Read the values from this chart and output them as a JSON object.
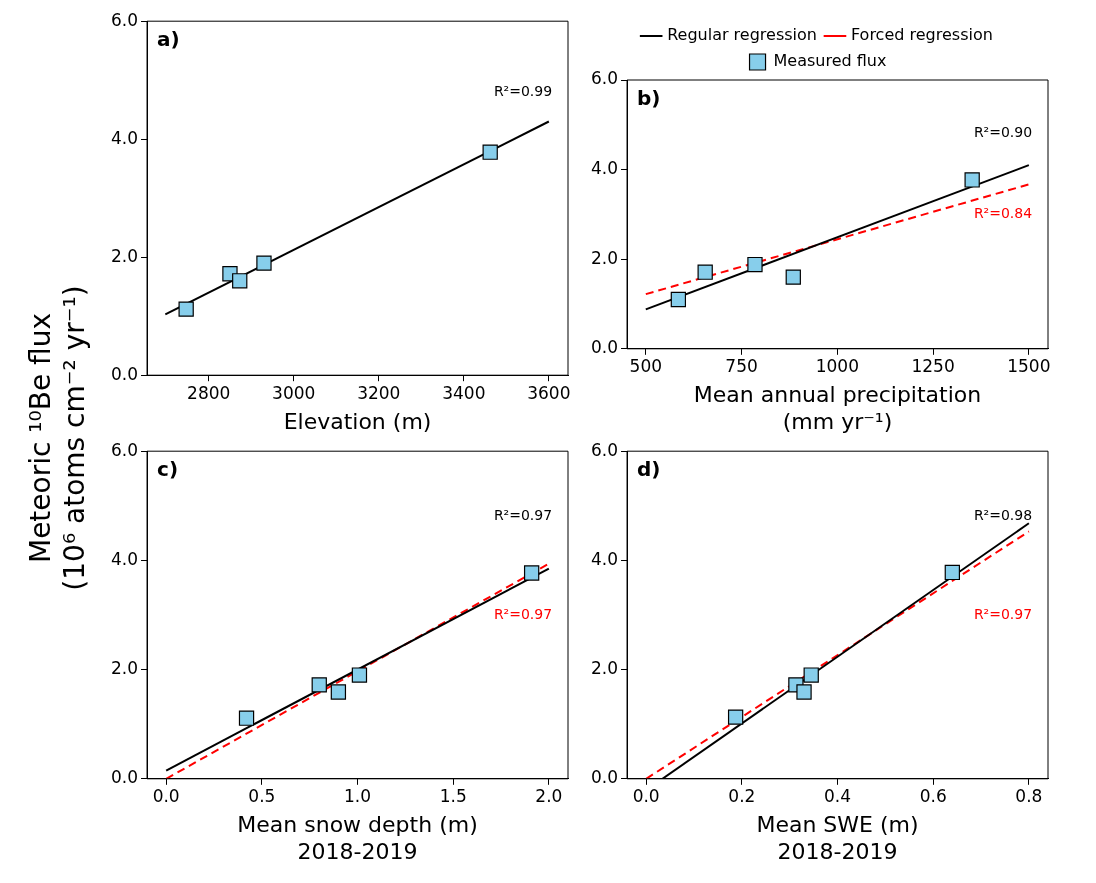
{
  "chart_data": [
    {
      "type": "scatter",
      "title": "a)",
      "xlabel": "Elevation (m)",
      "ylabel": "Meteoric ¹⁰Be flux\n(10⁶ atoms cm⁻² yr⁻¹)",
      "xlim": [
        2655,
        3645
      ],
      "xticks": [
        2800,
        3000,
        3200,
        3400,
        3600
      ],
      "ylim": [
        0,
        6
      ],
      "yticks": [
        {
          "value": 0,
          "label": "0.0"
        },
        {
          "value": 2,
          "label": "2.0"
        },
        {
          "value": 4,
          "label": "4.0"
        },
        {
          "value": 6,
          "label": "6.0"
        }
      ],
      "grid": false,
      "series": [
        {
          "type": "line",
          "color": "#000000",
          "line_style": "solid",
          "x": [
            2698,
            3600
          ],
          "values": [
            1.03,
            4.3
          ]
        },
        {
          "type": "scatter",
          "color": "#87ceeb",
          "marker": "square",
          "x": [
            2747,
            2850,
            2873,
            2930,
            3462
          ],
          "values": [
            1.12,
            1.72,
            1.6,
            1.9,
            3.78
          ]
        }
      ],
      "annotations": [
        "R²=0.99"
      ]
    },
    {
      "type": "scatter",
      "title": "b)",
      "xlabel": "Mean annual precipitation\n(mm yr⁻¹)",
      "xlim": [
        451,
        1550
      ],
      "xticks": [
        500,
        750,
        1000,
        1250,
        1500
      ],
      "ylim": [
        0,
        6
      ],
      "yticks": [
        {
          "value": 0,
          "label": "0.0"
        },
        {
          "value": 2,
          "label": "2.0"
        },
        {
          "value": 4,
          "label": "4.0"
        },
        {
          "value": 6,
          "label": "6.0"
        }
      ],
      "grid": false,
      "legend": "top",
      "series": [
        {
          "type": "line",
          "name": "Regular regression",
          "color": "#000000",
          "line_style": "solid",
          "x": [
            500,
            1500
          ],
          "values": [
            0.88,
            4.1
          ]
        },
        {
          "type": "line",
          "name": "Forced regression",
          "color": "#ff0000",
          "line_style": "dashed",
          "x": [
            500,
            1500
          ],
          "values": [
            1.22,
            3.67
          ]
        },
        {
          "type": "scatter",
          "name": "Measured flux",
          "color": "#87ceeb",
          "marker": "square",
          "x": [
            585,
            655,
            785,
            885,
            1352
          ],
          "values": [
            1.1,
            1.71,
            1.88,
            1.6,
            3.77
          ]
        }
      ],
      "annotations": [
        "R²=0.90",
        "R²=0.84"
      ]
    },
    {
      "type": "scatter",
      "title": "c)",
      "xlabel": "Mean snow depth (m)\n2018-2019",
      "xlim": [
        -0.1,
        2.1
      ],
      "xticks": [
        {
          "value": 0,
          "label": "0.0"
        },
        {
          "value": 0.5,
          "label": "0.5"
        },
        {
          "value": 1,
          "label": "1.0"
        },
        {
          "value": 1.5,
          "label": "1.5"
        },
        {
          "value": 2,
          "label": "2.0"
        }
      ],
      "ylim": [
        0,
        6
      ],
      "yticks": [
        {
          "value": 0,
          "label": "0.0"
        },
        {
          "value": 2,
          "label": "2.0"
        },
        {
          "value": 4,
          "label": "4.0"
        },
        {
          "value": 6,
          "label": "6.0"
        }
      ],
      "grid": false,
      "series": [
        {
          "type": "line",
          "color": "#000000",
          "line_style": "solid",
          "x": [
            0,
            2
          ],
          "values": [
            0.15,
            3.85
          ]
        },
        {
          "type": "line",
          "color": "#ff0000",
          "line_style": "dashed",
          "x": [
            0,
            2
          ],
          "values": [
            0,
            3.94
          ]
        },
        {
          "type": "scatter",
          "color": "#87ceeb",
          "marker": "square",
          "x": [
            0.42,
            0.8,
            0.9,
            1.01,
            1.91
          ],
          "values": [
            1.11,
            1.72,
            1.59,
            1.9,
            3.77
          ]
        }
      ],
      "annotations": [
        "R²=0.97",
        "R²=0.97"
      ]
    },
    {
      "type": "scatter",
      "title": "d)",
      "xlabel": "Mean SWE (m)\n2018-2019",
      "xlim": [
        -0.04,
        0.84
      ],
      "xticks": [
        {
          "value": 0,
          "label": "0.0"
        },
        {
          "value": 0.2,
          "label": "0.2"
        },
        {
          "value": 0.4,
          "label": "0.4"
        },
        {
          "value": 0.6,
          "label": "0.6"
        },
        {
          "value": 0.8,
          "label": "0.8"
        }
      ],
      "ylim": [
        0,
        6
      ],
      "yticks": [
        {
          "value": 0,
          "label": "0.0"
        },
        {
          "value": 2,
          "label": "2.0"
        },
        {
          "value": 4,
          "label": "4.0"
        },
        {
          "value": 6,
          "label": "6.0"
        }
      ],
      "grid": false,
      "series": [
        {
          "type": "line",
          "color": "#000000",
          "line_style": "solid",
          "x": [
            0.034,
            0.8
          ],
          "values": [
            0,
            4.68
          ]
        },
        {
          "type": "line",
          "color": "#ff0000",
          "line_style": "dashed",
          "x": [
            0,
            0.8
          ],
          "values": [
            0,
            4.53
          ]
        },
        {
          "type": "scatter",
          "color": "#87ceeb",
          "marker": "square",
          "x": [
            0.187,
            0.313,
            0.33,
            0.345,
            0.64
          ],
          "values": [
            1.13,
            1.72,
            1.59,
            1.9,
            3.78
          ]
        }
      ],
      "annotations": [
        "R²=0.98",
        "R²=0.97"
      ]
    }
  ]
}
